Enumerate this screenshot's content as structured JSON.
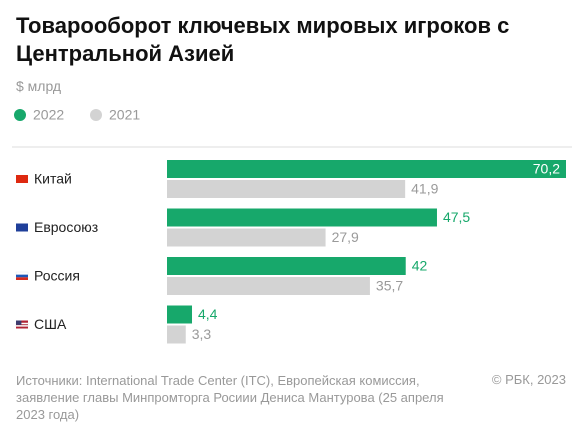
{
  "chart_data": {
    "type": "bar",
    "orientation": "horizontal",
    "title": "Товарооборот ключевых мировых игроков с Центральной Азией",
    "subtitle": "$ млрд",
    "categories": [
      "Китай",
      "Евросоюз",
      "Россия",
      "США"
    ],
    "series": [
      {
        "name": "2022",
        "color": "#17a86b",
        "label_color": "#17a86b",
        "values": [
          70.2,
          47.5,
          42,
          4.4
        ],
        "value_labels": [
          "70,2",
          "47,5",
          "42",
          "4,4"
        ]
      },
      {
        "name": "2021",
        "color": "#d3d3d3",
        "label_color": "#9a9a9a",
        "values": [
          41.9,
          27.9,
          35.7,
          3.3
        ],
        "value_labels": [
          "41,9",
          "27,9",
          "35,7",
          "3,3"
        ]
      }
    ],
    "source": "Источники: International Trade Center (ITC), Европейская комиссия, заявление главы Минпромторга Росиии Дениса Мантурова (25 апреля 2023 года)",
    "copyright": "© РБК, 2023"
  }
}
